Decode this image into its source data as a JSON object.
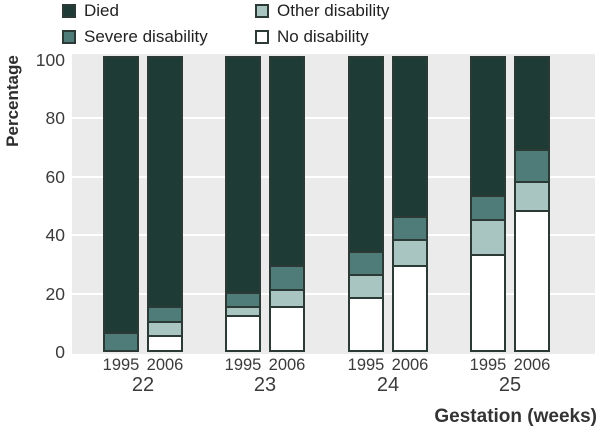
{
  "chart_data": {
    "type": "bar",
    "stacked": true,
    "ylabel": "Percentage",
    "xlabel": "Gestation (weeks)",
    "ylim": [
      0,
      100
    ],
    "yticks": [
      0,
      20,
      40,
      60,
      80,
      100
    ],
    "gridlines": [
      20,
      40,
      60,
      80
    ],
    "legend_position": "top",
    "stack_order_bottom_to_top": [
      "no_disability",
      "other_disability",
      "severe_disability",
      "died"
    ],
    "legend": [
      {
        "key": "died",
        "label": "Died",
        "color": "#1e3b35"
      },
      {
        "key": "severe_disability",
        "label": "Severe disability",
        "color": "#4f7c78"
      },
      {
        "key": "other_disability",
        "label": "Other disability",
        "color": "#a8c5c1"
      },
      {
        "key": "no_disability",
        "label": "No disability",
        "color": "#ffffff"
      }
    ],
    "groups": [
      {
        "week": "22",
        "bars": [
          {
            "year": "1995",
            "values": {
              "no_disability": 0,
              "other_disability": 0,
              "severe_disability": 6,
              "died": 94
            }
          },
          {
            "year": "2006",
            "values": {
              "no_disability": 5,
              "other_disability": 5,
              "severe_disability": 5,
              "died": 85
            }
          }
        ]
      },
      {
        "week": "23",
        "bars": [
          {
            "year": "1995",
            "values": {
              "no_disability": 12,
              "other_disability": 3,
              "severe_disability": 5,
              "died": 80
            }
          },
          {
            "year": "2006",
            "values": {
              "no_disability": 15,
              "other_disability": 6,
              "severe_disability": 8,
              "died": 71
            }
          }
        ]
      },
      {
        "week": "24",
        "bars": [
          {
            "year": "1995",
            "values": {
              "no_disability": 18,
              "other_disability": 8,
              "severe_disability": 8,
              "died": 66
            }
          },
          {
            "year": "2006",
            "values": {
              "no_disability": 29,
              "other_disability": 9,
              "severe_disability": 8,
              "died": 54
            }
          }
        ]
      },
      {
        "week": "25",
        "bars": [
          {
            "year": "1995",
            "values": {
              "no_disability": 33,
              "other_disability": 12,
              "severe_disability": 8,
              "died": 47
            }
          },
          {
            "year": "2006",
            "values": {
              "no_disability": 48,
              "other_disability": 10,
              "severe_disability": 11,
              "died": 31
            }
          }
        ]
      }
    ],
    "colors": {
      "plot_background": "#ebebeb",
      "gridline": "#ffffff",
      "bar_border": "#2c3a36",
      "axis_text": "#3b3b3b"
    }
  }
}
